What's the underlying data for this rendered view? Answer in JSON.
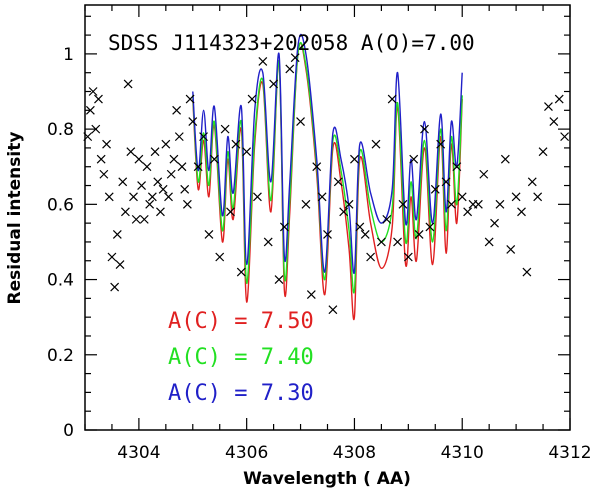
{
  "chart_data": {
    "type": "line",
    "title": "SDSS J114323+202058 A(O)=7.00",
    "xlabel": "Wavelength ( AA)",
    "ylabel": "Residual intensity",
    "xlim": [
      4303,
      4312
    ],
    "ylim": [
      0,
      1.13
    ],
    "x_ticks": [
      4304,
      4306,
      4308,
      4310,
      4312
    ],
    "y_ticks": [
      0,
      0.2,
      0.4,
      0.6,
      0.8,
      1
    ],
    "series": [
      {
        "name": "A(C) = 7.50",
        "label": "A(C)  =  7.50",
        "color": "#e02020",
        "x": [
          4305.0,
          4305.1,
          4305.2,
          4305.3,
          4305.4,
          4305.55,
          4305.65,
          4305.75,
          4305.9,
          4306.0,
          4306.15,
          4306.3,
          4306.45,
          4306.6,
          4306.7,
          4306.8,
          4306.95,
          4307.1,
          4307.3,
          4307.45,
          4307.6,
          4307.75,
          4307.9,
          4308.0,
          4308.1,
          4308.3,
          4308.5,
          4308.7,
          4308.8,
          4308.95,
          4309.05,
          4309.15,
          4309.3,
          4309.45,
          4309.6,
          4309.7,
          4309.8,
          4309.9,
          4310.0
        ],
        "y": [
          0.88,
          0.64,
          0.77,
          0.62,
          0.81,
          0.5,
          0.72,
          0.56,
          0.8,
          0.34,
          0.76,
          0.92,
          0.58,
          0.98,
          0.37,
          0.58,
          1.0,
          0.96,
          0.68,
          0.36,
          0.75,
          0.66,
          0.48,
          0.3,
          0.72,
          0.55,
          0.43,
          0.54,
          0.86,
          0.44,
          0.62,
          0.45,
          0.75,
          0.44,
          0.78,
          0.47,
          0.76,
          0.55,
          0.88
        ]
      },
      {
        "name": "A(C) = 7.40",
        "label": "A(C)  =  7.40",
        "color": "#22e022",
        "x": [
          4305.0,
          4305.1,
          4305.2,
          4305.3,
          4305.4,
          4305.55,
          4305.65,
          4305.75,
          4305.9,
          4306.0,
          4306.15,
          4306.3,
          4306.45,
          4306.6,
          4306.7,
          4306.8,
          4306.95,
          4307.1,
          4307.3,
          4307.45,
          4307.6,
          4307.75,
          4307.9,
          4308.0,
          4308.1,
          4308.3,
          4308.5,
          4308.7,
          4308.8,
          4308.95,
          4309.05,
          4309.15,
          4309.3,
          4309.45,
          4309.6,
          4309.7,
          4309.8,
          4309.9,
          4310.0
        ],
        "y": [
          0.89,
          0.66,
          0.79,
          0.65,
          0.82,
          0.53,
          0.74,
          0.59,
          0.82,
          0.39,
          0.78,
          0.93,
          0.61,
          0.98,
          0.41,
          0.61,
          1.0,
          0.97,
          0.7,
          0.4,
          0.77,
          0.69,
          0.53,
          0.37,
          0.74,
          0.59,
          0.5,
          0.59,
          0.87,
          0.5,
          0.66,
          0.51,
          0.77,
          0.5,
          0.8,
          0.53,
          0.78,
          0.6,
          0.89
        ]
      },
      {
        "name": "A(C) = 7.30",
        "label": "A(C)  =  7.30",
        "color": "#2020c8",
        "x": [
          4305.0,
          4305.1,
          4305.2,
          4305.3,
          4305.4,
          4305.55,
          4305.65,
          4305.75,
          4305.9,
          4306.0,
          4306.15,
          4306.3,
          4306.45,
          4306.6,
          4306.7,
          4306.8,
          4306.95,
          4307.1,
          4307.3,
          4307.45,
          4307.6,
          4307.75,
          4307.9,
          4308.0,
          4308.1,
          4308.3,
          4308.5,
          4308.7,
          4308.8,
          4308.95,
          4309.05,
          4309.15,
          4309.3,
          4309.45,
          4309.6,
          4309.7,
          4309.8,
          4309.9,
          4310.0
        ],
        "y": [
          0.9,
          0.69,
          0.85,
          0.69,
          0.86,
          0.57,
          0.78,
          0.63,
          0.86,
          0.44,
          0.85,
          0.95,
          0.66,
          1.0,
          0.46,
          0.66,
          1.02,
          1.0,
          0.72,
          0.42,
          0.79,
          0.72,
          0.59,
          0.42,
          0.76,
          0.63,
          0.55,
          0.64,
          0.95,
          0.55,
          0.72,
          0.56,
          0.82,
          0.55,
          0.84,
          0.58,
          0.82,
          0.7,
          0.95
        ]
      }
    ],
    "observed": {
      "name": "observed spectrum",
      "marker": "x",
      "x": [
        4303.05,
        4303.1,
        4303.15,
        4303.2,
        4303.25,
        4303.3,
        4303.35,
        4303.4,
        4303.45,
        4303.5,
        4303.55,
        4303.6,
        4303.65,
        4303.7,
        4303.75,
        4303.8,
        4303.85,
        4303.9,
        4303.95,
        4304.0,
        4304.05,
        4304.1,
        4304.15,
        4304.2,
        4304.25,
        4304.3,
        4304.35,
        4304.4,
        4304.45,
        4304.5,
        4304.55,
        4304.6,
        4304.65,
        4304.7,
        4304.75,
        4304.8,
        4304.85,
        4304.9,
        4304.95,
        4305.0,
        4305.1,
        4305.2,
        4305.3,
        4305.4,
        4305.5,
        4305.6,
        4305.7,
        4305.8,
        4305.9,
        4306.0,
        4306.1,
        4306.2,
        4306.3,
        4306.4,
        4306.5,
        4306.6,
        4306.7,
        4306.8,
        4306.9,
        4307.0,
        4307.1,
        4307.2,
        4307.3,
        4307.4,
        4307.5,
        4307.6,
        4307.7,
        4307.8,
        4307.9,
        4308.0,
        4308.1,
        4308.2,
        4308.3,
        4308.4,
        4308.5,
        4308.6,
        4308.7,
        4308.8,
        4308.9,
        4309.0,
        4309.1,
        4309.2,
        4309.3,
        4309.4,
        4309.5,
        4309.6,
        4309.7,
        4309.8,
        4309.9,
        4310.0,
        4310.1,
        4310.2,
        4310.3,
        4310.4,
        4310.5,
        4310.6,
        4310.7,
        4310.8,
        4310.9,
        4311.0,
        4311.1,
        4311.2,
        4311.3,
        4311.4,
        4311.5,
        4311.6,
        4311.7,
        4311.8,
        4311.9
      ],
      "y": [
        0.78,
        0.85,
        0.9,
        0.8,
        0.88,
        0.72,
        0.68,
        0.76,
        0.62,
        0.46,
        0.38,
        0.52,
        0.44,
        0.66,
        0.58,
        0.92,
        0.74,
        0.62,
        0.56,
        0.72,
        0.65,
        0.56,
        0.7,
        0.6,
        0.62,
        0.74,
        0.66,
        0.58,
        0.64,
        0.76,
        0.62,
        0.68,
        0.72,
        0.85,
        0.78,
        0.7,
        0.64,
        0.6,
        0.88,
        0.82,
        0.7,
        0.78,
        0.52,
        0.72,
        0.46,
        0.8,
        0.58,
        0.76,
        0.42,
        0.74,
        0.88,
        0.62,
        0.98,
        0.5,
        0.92,
        0.4,
        0.54,
        0.96,
        0.99,
        0.82,
        0.6,
        0.36,
        0.7,
        0.62,
        0.52,
        0.32,
        0.66,
        0.58,
        0.6,
        0.72,
        0.54,
        0.52,
        0.46,
        0.76,
        0.5,
        0.56,
        0.88,
        0.5,
        0.6,
        0.46,
        0.72,
        0.52,
        0.8,
        0.54,
        0.64,
        0.76,
        0.66,
        0.6,
        0.7,
        0.62,
        0.58,
        0.6,
        0.6,
        0.68,
        0.5,
        0.55,
        0.6,
        0.72,
        0.48,
        0.62,
        0.58,
        0.42,
        0.66,
        0.62,
        0.74,
        0.86,
        0.82,
        0.88,
        0.78
      ]
    }
  }
}
